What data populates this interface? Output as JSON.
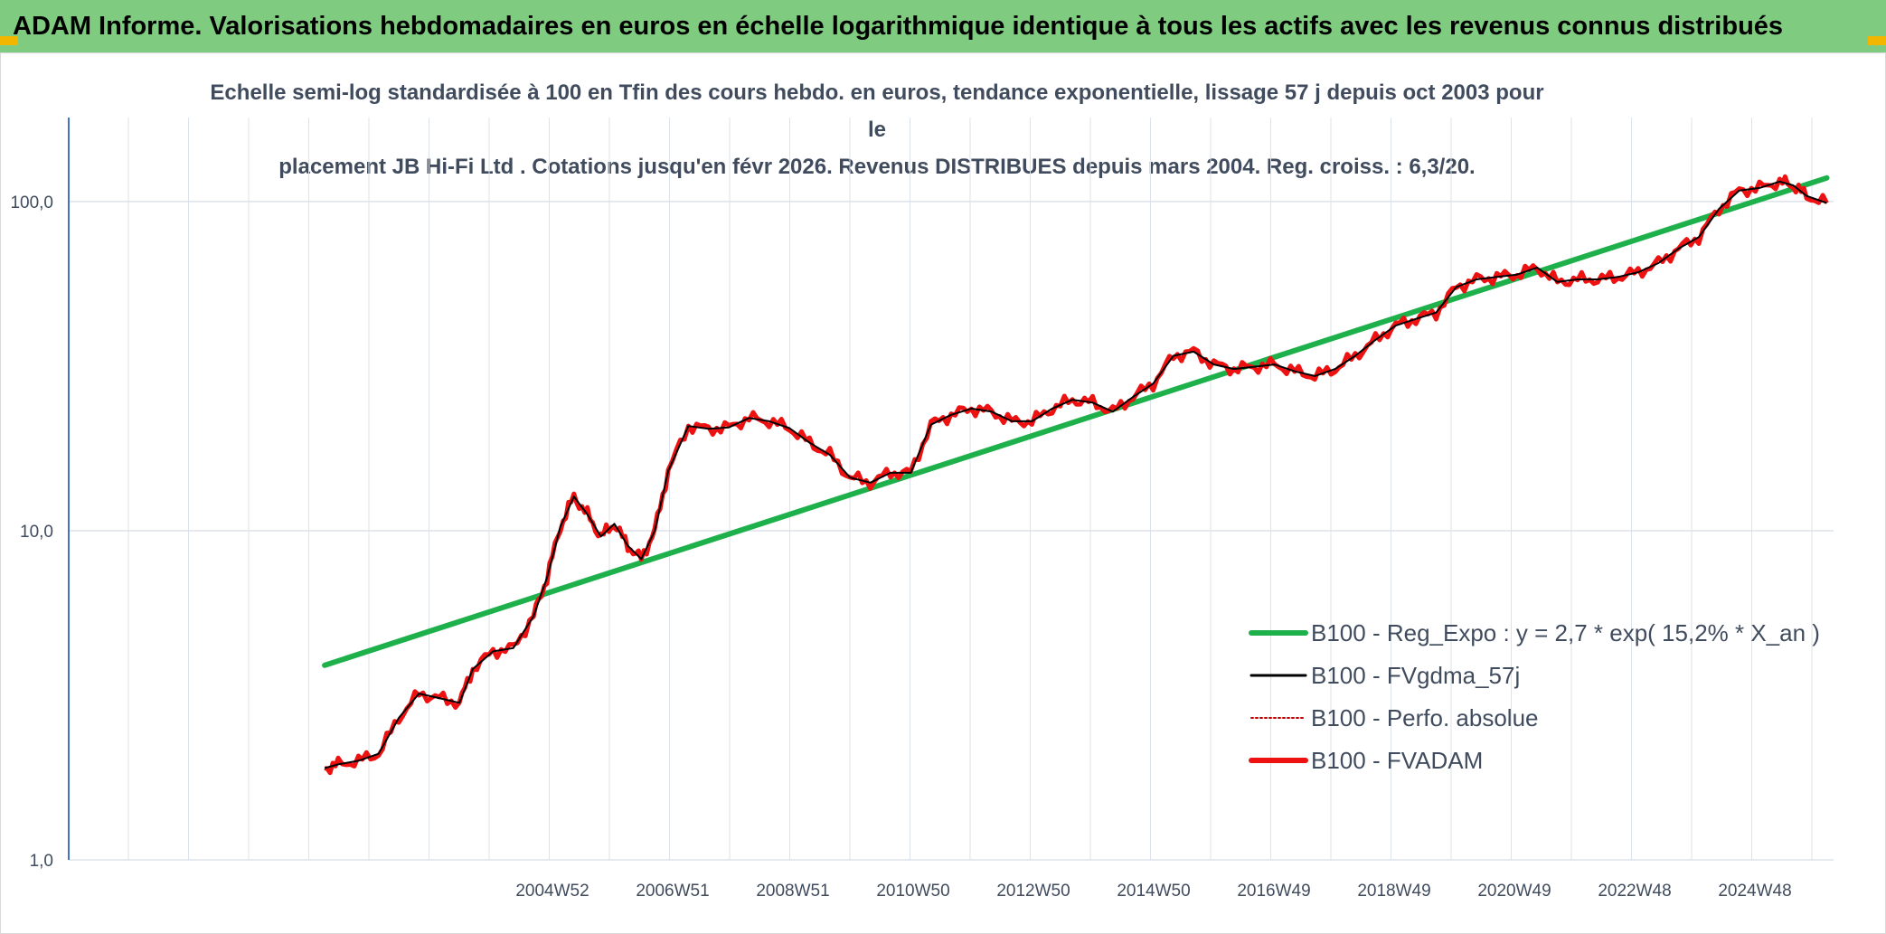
{
  "header": {
    "title": "ADAM Informe. Valorisations hebdomadaires en euros en échelle logarithmique identique à tous les actifs avec les revenus connus distribués"
  },
  "colors": {
    "title_bg": "#7fcb7f",
    "corner_accent": "#f2b600",
    "trend": "#1db04b",
    "fvgdma": "#000000",
    "perfo": "#c00000",
    "fvadam": "#ee1111",
    "axis": "#4472c4",
    "grid": "#dde3ea",
    "text": "#404c5e"
  },
  "chart_data": {
    "type": "line",
    "y_scale": "log",
    "ylim": [
      1,
      180
    ],
    "grid": "on",
    "legend_position": "bottom-right",
    "subtitle_lines": [
      "Echelle semi-log standardisée à 100 en Tfin des cours hebdo. en euros, tendance exponentielle, lissage 57 j depuis oct 2003 pour le",
      "placement JB Hi-Fi Ltd . Cotations jusqu'en févr 2026. Revenus DISTRIBUES depuis mars 2004. Reg. croiss. : 6,3/20."
    ],
    "y_ticks": [
      {
        "value": 100,
        "label": "100,0"
      },
      {
        "value": 10,
        "label": "10,0"
      },
      {
        "value": 1,
        "label": "1,0"
      }
    ],
    "x_ticks": [
      "2004W52",
      "2006W51",
      "2008W51",
      "2010W50",
      "2012W50",
      "2014W50",
      "2016W49",
      "2018W49",
      "2020W49",
      "2022W48",
      "2024W48"
    ],
    "x_range_years": [
      2000,
      2026.2
    ],
    "series": [
      {
        "name": "B100 - Reg_Expo : y = 2,7 * exp( 15,2% *  X_an )",
        "style": "trend",
        "x": [
          2003.8,
          2026.1
        ],
        "values": [
          3.9,
          118
        ]
      },
      {
        "name": "B100 - FVgdma_57j",
        "style": "smooth",
        "x": [
          2003.8,
          2004.0,
          2004.3,
          2004.6,
          2004.9,
          2005.2,
          2005.5,
          2005.8,
          2006.0,
          2006.3,
          2006.6,
          2006.9,
          2007.1,
          2007.3,
          2007.5,
          2007.7,
          2007.9,
          2008.1,
          2008.3,
          2008.5,
          2008.7,
          2008.9,
          2009.2,
          2009.5,
          2009.8,
          2010.1,
          2010.4,
          2010.7,
          2011.0,
          2011.3,
          2011.6,
          2011.9,
          2012.2,
          2012.5,
          2012.8,
          2013.1,
          2013.4,
          2013.7,
          2014.0,
          2014.3,
          2014.6,
          2014.9,
          2015.2,
          2015.5,
          2015.8,
          2016.1,
          2016.4,
          2016.7,
          2017.0,
          2017.3,
          2017.6,
          2017.9,
          2018.2,
          2018.5,
          2018.8,
          2019.1,
          2019.4,
          2019.7,
          2020.0,
          2020.3,
          2020.6,
          2020.9,
          2021.2,
          2021.5,
          2021.8,
          2022.1,
          2022.4,
          2022.7,
          2023.0,
          2023.3,
          2023.6,
          2023.9,
          2024.2,
          2024.5,
          2024.8,
          2025.1,
          2025.4,
          2025.6,
          2025.8,
          2026.1
        ],
        "values": [
          1.9,
          1.95,
          2.0,
          2.1,
          2.7,
          3.2,
          3.1,
          3.0,
          3.8,
          4.3,
          4.4,
          5.5,
          7.2,
          10.3,
          12.7,
          11.2,
          9.6,
          10.5,
          9.0,
          8.2,
          10.0,
          15.2,
          20.8,
          20.4,
          20.6,
          22.0,
          21.5,
          20.5,
          18.5,
          17.0,
          14.5,
          14.0,
          15.0,
          15.0,
          21.0,
          22.5,
          23.5,
          23.0,
          21.5,
          21.5,
          23.5,
          25.0,
          24.5,
          23.0,
          25.5,
          28.0,
          34.0,
          35.0,
          32.0,
          31.0,
          31.5,
          32.0,
          30.5,
          29.5,
          31.0,
          34.0,
          38.0,
          42.0,
          44.0,
          46.0,
          55.0,
          58.0,
          59.0,
          60.0,
          63.0,
          57.0,
          58.0,
          58.0,
          59.0,
          61.0,
          65.0,
          72.0,
          78.0,
          95.0,
          108.0,
          110.0,
          115.0,
          112.0,
          104.0,
          99.0
        ]
      },
      {
        "name": "B100 - Perfo. absolue",
        "style": "dotted",
        "x": [],
        "values": []
      },
      {
        "name": "B100 - FVADAM",
        "style": "thick",
        "x": [
          2003.8,
          2004.0,
          2004.3,
          2004.6,
          2004.9,
          2005.2,
          2005.5,
          2005.8,
          2006.0,
          2006.3,
          2006.6,
          2006.9,
          2007.1,
          2007.3,
          2007.5,
          2007.7,
          2007.9,
          2008.1,
          2008.3,
          2008.5,
          2008.7,
          2008.9,
          2009.2,
          2009.5,
          2009.8,
          2010.1,
          2010.4,
          2010.7,
          2011.0,
          2011.3,
          2011.6,
          2011.9,
          2012.2,
          2012.5,
          2012.8,
          2013.1,
          2013.4,
          2013.7,
          2014.0,
          2014.3,
          2014.6,
          2014.9,
          2015.2,
          2015.5,
          2015.8,
          2016.1,
          2016.4,
          2016.7,
          2017.0,
          2017.3,
          2017.6,
          2017.9,
          2018.2,
          2018.5,
          2018.8,
          2019.1,
          2019.4,
          2019.7,
          2020.0,
          2020.3,
          2020.6,
          2020.9,
          2021.2,
          2021.5,
          2021.8,
          2022.1,
          2022.4,
          2022.7,
          2023.0,
          2023.3,
          2023.6,
          2023.9,
          2024.2,
          2024.5,
          2024.8,
          2025.1,
          2025.4,
          2025.6,
          2025.8,
          2026.1
        ],
        "values": [
          1.9,
          1.95,
          2.0,
          2.1,
          2.7,
          3.2,
          3.1,
          3.0,
          3.8,
          4.3,
          4.4,
          5.5,
          7.2,
          10.3,
          12.7,
          11.2,
          9.6,
          10.5,
          9.0,
          8.2,
          10.0,
          15.2,
          20.8,
          20.4,
          20.6,
          22.0,
          21.5,
          20.5,
          18.5,
          17.0,
          14.5,
          14.0,
          15.0,
          15.0,
          21.0,
          22.5,
          23.5,
          23.0,
          21.5,
          21.5,
          23.5,
          25.0,
          24.5,
          23.0,
          25.5,
          28.0,
          34.0,
          35.0,
          32.0,
          31.0,
          31.5,
          32.0,
          30.5,
          29.5,
          31.0,
          34.0,
          38.0,
          42.0,
          44.0,
          46.0,
          55.0,
          58.0,
          59.0,
          60.0,
          63.0,
          57.0,
          58.0,
          58.0,
          59.0,
          61.0,
          65.0,
          72.0,
          78.0,
          95.0,
          108.0,
          110.0,
          115.0,
          112.0,
          104.0,
          99.0
        ]
      }
    ]
  }
}
